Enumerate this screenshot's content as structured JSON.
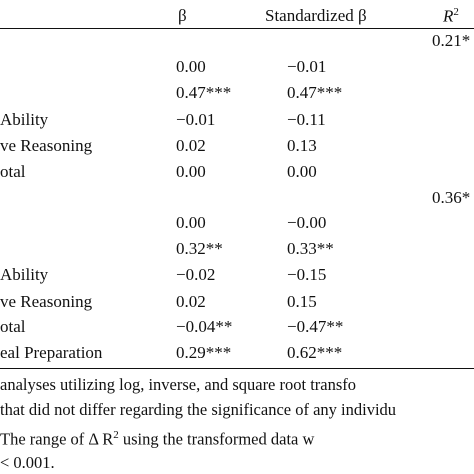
{
  "header": {
    "beta": "β",
    "std_beta": "Standardized β",
    "r2": "R"
  },
  "rows": [
    {
      "label": "",
      "beta": "",
      "std": "",
      "r2": "0.21*"
    },
    {
      "label": "",
      "beta": "0.00",
      "std": "−0.01",
      "r2": ""
    },
    {
      "label": "",
      "beta": "0.47***",
      "std": "0.47***",
      "r2": ""
    },
    {
      "label": "Ability",
      "beta": "−0.01",
      "std": "−0.11",
      "r2": ""
    },
    {
      "label": "ve Reasoning",
      "beta": "0.02",
      "std": "0.13",
      "r2": ""
    },
    {
      "label": "otal",
      "beta": "0.00",
      "std": "0.00",
      "r2": ""
    },
    {
      "label": "",
      "beta": "",
      "std": "",
      "r2": "0.36*"
    },
    {
      "label": "",
      "beta": "0.00",
      "std": "−0.00",
      "r2": ""
    },
    {
      "label": "",
      "beta": "0.32**",
      "std": "0.33**",
      "r2": ""
    },
    {
      "label": "Ability",
      "beta": "−0.02",
      "std": "−0.15",
      "r2": ""
    },
    {
      "label": "ve Reasoning",
      "beta": "0.02",
      "std": "0.15",
      "r2": ""
    },
    {
      "label": "otal",
      "beta": "−0.04**",
      "std": "−0.47**",
      "r2": ""
    },
    {
      "label": "eal Preparation",
      "beta": "0.29***",
      "std": "0.62***",
      "r2": ""
    }
  ],
  "notes": [
    " analyses utilizing log, inverse, and square root transfo",
    "that did not differ regarding the significance of any individu",
    "  The  range  of  Δ  R",
    "< 0.001."
  ],
  "note3_tail": "  using  the  transformed  data  w",
  "note3_sup": "2"
}
